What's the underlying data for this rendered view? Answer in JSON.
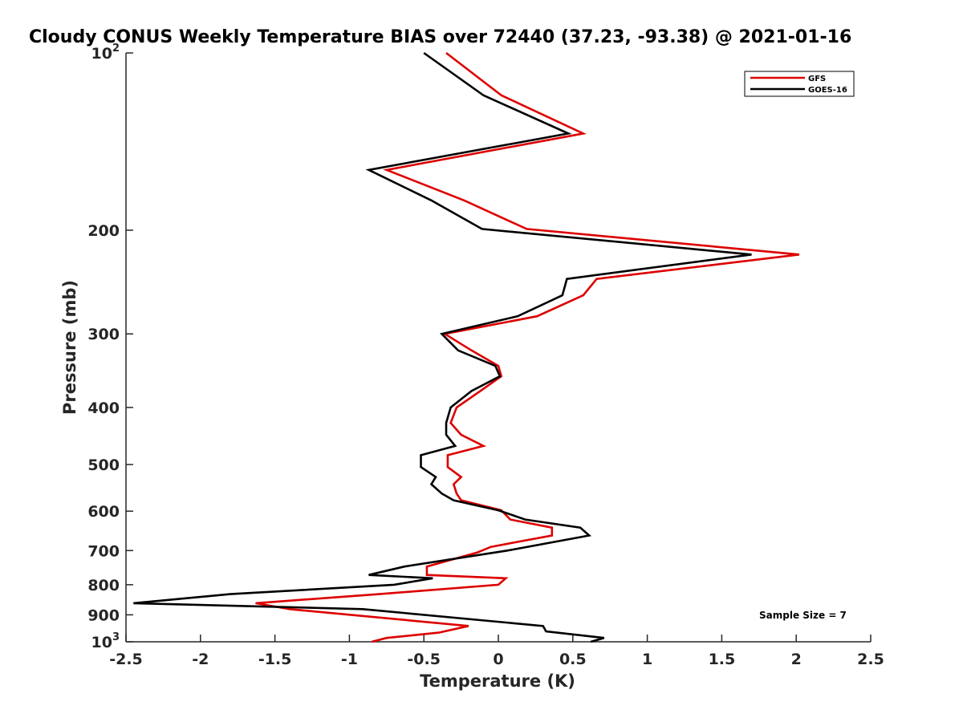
{
  "chart_data": {
    "type": "line",
    "title": "Cloudy CONUS Weekly Temperature BIAS over 72440 (37.23, -93.38) @ 2021-01-16",
    "xlabel": "Temperature (K)",
    "ylabel": "Pressure (mb)",
    "xlim": [
      -2.5,
      2.5
    ],
    "ylim": [
      100,
      1000
    ],
    "y_scale": "log",
    "y_reversed": true,
    "grid": false,
    "legend_position": "top-right",
    "xticks": [
      -2.5,
      -2,
      -1.5,
      -1,
      -0.5,
      0,
      0.5,
      1,
      1.5,
      2,
      2.5
    ],
    "xtick_labels": [
      "-2.5",
      "-2",
      "-1.5",
      "-1",
      "-0.5",
      "0",
      "0.5",
      "1",
      "1.5",
      "2",
      "2.5"
    ],
    "yticks": [
      100,
      200,
      300,
      400,
      500,
      600,
      700,
      800,
      900,
      1000
    ],
    "ytick_labels": [
      {
        "base": "10",
        "exp": "2"
      },
      {
        "base": "200",
        "exp": ""
      },
      {
        "base": "300",
        "exp": ""
      },
      {
        "base": "400",
        "exp": ""
      },
      {
        "base": "500",
        "exp": ""
      },
      {
        "base": "600",
        "exp": ""
      },
      {
        "base": "700",
        "exp": ""
      },
      {
        "base": "800",
        "exp": ""
      },
      {
        "base": "900",
        "exp": ""
      },
      {
        "base": "10",
        "exp": "3"
      }
    ],
    "series": [
      {
        "name": "GFS",
        "color": "#dd0000",
        "points": [
          {
            "x": -0.35,
            "y": 100
          },
          {
            "x": 0.02,
            "y": 118
          },
          {
            "x": 0.57,
            "y": 137
          },
          {
            "x": -0.75,
            "y": 158
          },
          {
            "x": -0.23,
            "y": 178
          },
          {
            "x": 0.19,
            "y": 199
          },
          {
            "x": 2.02,
            "y": 220
          },
          {
            "x": 0.66,
            "y": 242
          },
          {
            "x": 0.57,
            "y": 258
          },
          {
            "x": 0.26,
            "y": 280
          },
          {
            "x": -0.36,
            "y": 300
          },
          {
            "x": -0.18,
            "y": 320
          },
          {
            "x": 0.0,
            "y": 340
          },
          {
            "x": 0.02,
            "y": 354
          },
          {
            "x": -0.12,
            "y": 375
          },
          {
            "x": -0.28,
            "y": 400
          },
          {
            "x": -0.32,
            "y": 425
          },
          {
            "x": -0.25,
            "y": 445
          },
          {
            "x": -0.1,
            "y": 465
          },
          {
            "x": -0.34,
            "y": 482
          },
          {
            "x": -0.34,
            "y": 505
          },
          {
            "x": -0.25,
            "y": 525
          },
          {
            "x": -0.3,
            "y": 540
          },
          {
            "x": -0.28,
            "y": 560
          },
          {
            "x": -0.25,
            "y": 575
          },
          {
            "x": 0.02,
            "y": 598
          },
          {
            "x": 0.08,
            "y": 620
          },
          {
            "x": 0.36,
            "y": 640
          },
          {
            "x": 0.36,
            "y": 660
          },
          {
            "x": -0.05,
            "y": 690
          },
          {
            "x": -0.14,
            "y": 705
          },
          {
            "x": -0.48,
            "y": 745
          },
          {
            "x": -0.48,
            "y": 770
          },
          {
            "x": 0.05,
            "y": 780
          },
          {
            "x": 0.0,
            "y": 800
          },
          {
            "x": -0.8,
            "y": 830
          },
          {
            "x": -1.63,
            "y": 860
          },
          {
            "x": -1.4,
            "y": 880
          },
          {
            "x": -0.2,
            "y": 940
          },
          {
            "x": -0.4,
            "y": 965
          },
          {
            "x": -0.75,
            "y": 985
          },
          {
            "x": -0.85,
            "y": 1000
          }
        ]
      },
      {
        "name": "GOES-16",
        "color": "#000000",
        "points": [
          {
            "x": -0.5,
            "y": 100
          },
          {
            "x": -0.1,
            "y": 118
          },
          {
            "x": 0.47,
            "y": 137
          },
          {
            "x": -0.87,
            "y": 158
          },
          {
            "x": -0.45,
            "y": 178
          },
          {
            "x": -0.11,
            "y": 199
          },
          {
            "x": 1.7,
            "y": 220
          },
          {
            "x": 0.46,
            "y": 242
          },
          {
            "x": 0.43,
            "y": 258
          },
          {
            "x": 0.13,
            "y": 280
          },
          {
            "x": -0.38,
            "y": 300
          },
          {
            "x": -0.27,
            "y": 320
          },
          {
            "x": -0.02,
            "y": 340
          },
          {
            "x": 0.01,
            "y": 354
          },
          {
            "x": -0.18,
            "y": 375
          },
          {
            "x": -0.32,
            "y": 400
          },
          {
            "x": -0.35,
            "y": 425
          },
          {
            "x": -0.35,
            "y": 445
          },
          {
            "x": -0.29,
            "y": 465
          },
          {
            "x": -0.52,
            "y": 482
          },
          {
            "x": -0.52,
            "y": 505
          },
          {
            "x": -0.42,
            "y": 525
          },
          {
            "x": -0.45,
            "y": 540
          },
          {
            "x": -0.38,
            "y": 560
          },
          {
            "x": -0.3,
            "y": 575
          },
          {
            "x": 0.0,
            "y": 598
          },
          {
            "x": 0.18,
            "y": 620
          },
          {
            "x": 0.55,
            "y": 640
          },
          {
            "x": 0.61,
            "y": 660
          },
          {
            "x": 0.06,
            "y": 700
          },
          {
            "x": -0.63,
            "y": 745
          },
          {
            "x": -0.87,
            "y": 770
          },
          {
            "x": -0.44,
            "y": 780
          },
          {
            "x": -0.7,
            "y": 800
          },
          {
            "x": -1.8,
            "y": 830
          },
          {
            "x": -2.45,
            "y": 860
          },
          {
            "x": -0.91,
            "y": 880
          },
          {
            "x": 0.3,
            "y": 940
          },
          {
            "x": 0.32,
            "y": 960
          },
          {
            "x": 0.71,
            "y": 985
          },
          {
            "x": 0.62,
            "y": 1000
          }
        ]
      }
    ],
    "annotations": [
      {
        "text": "Sample Size = 7",
        "position": "bottom-right"
      }
    ]
  }
}
